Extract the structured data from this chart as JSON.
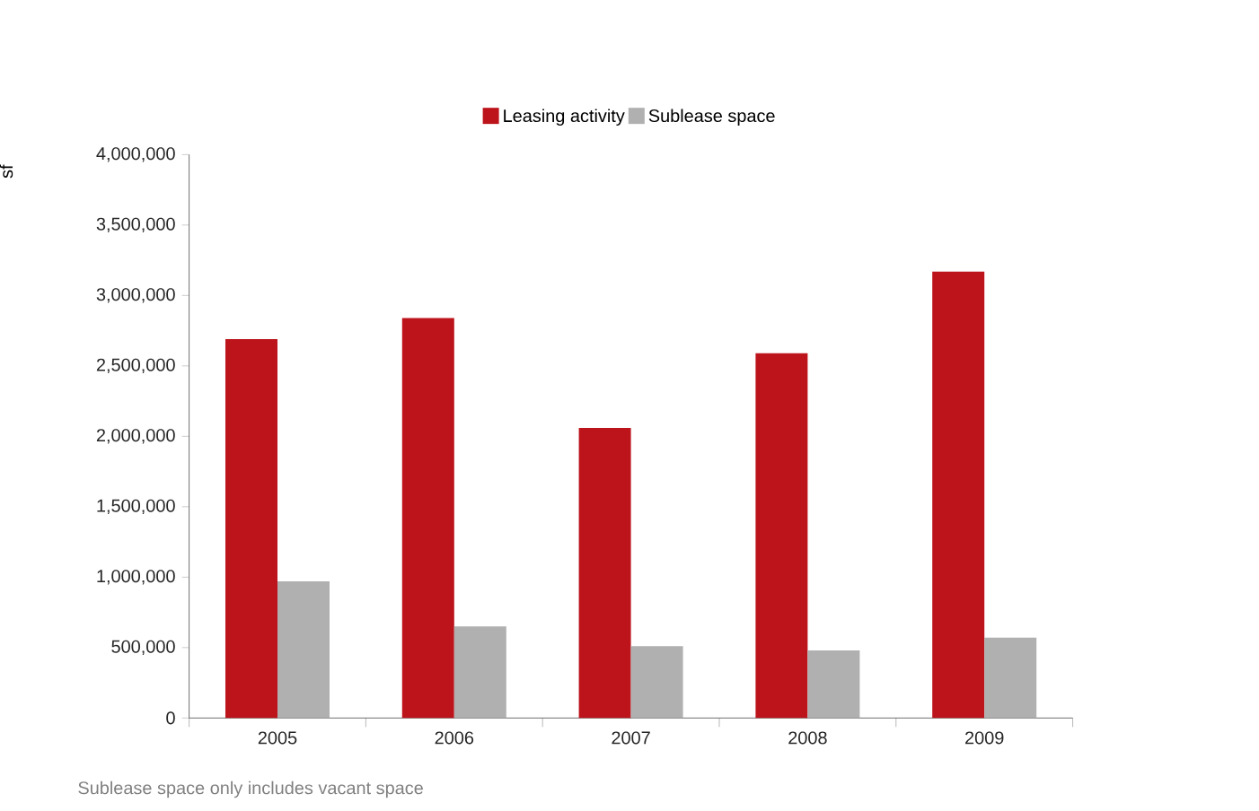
{
  "chart_data": {
    "type": "bar",
    "ylabel": "sf",
    "categories": [
      "2005",
      "2006",
      "2007",
      "2008",
      "2009"
    ],
    "series": [
      {
        "name": "Leasing activity",
        "color": "#bd141c",
        "values": [
          2690000,
          2840000,
          2060000,
          2590000,
          3170000
        ]
      },
      {
        "name": "Sublease space",
        "color": "#b0b0b0",
        "values": [
          970000,
          650000,
          510000,
          480000,
          570000
        ]
      }
    ],
    "ylim": [
      0,
      4000000
    ],
    "yticks": [
      {
        "value": 0,
        "label": "0"
      },
      {
        "value": 500000,
        "label": "500,000"
      },
      {
        "value": 1000000,
        "label": "1,000,000"
      },
      {
        "value": 1500000,
        "label": "1,500,000"
      },
      {
        "value": 2000000,
        "label": "2,000,000"
      },
      {
        "value": 2500000,
        "label": "2,500,000"
      },
      {
        "value": 3000000,
        "label": "3,000,000"
      },
      {
        "value": 3500000,
        "label": "3,500,000"
      },
      {
        "value": 4000000,
        "label": "4,000,000"
      }
    ],
    "legend": "top",
    "annotations": [
      "Sublease space only includes vacant space"
    ]
  }
}
